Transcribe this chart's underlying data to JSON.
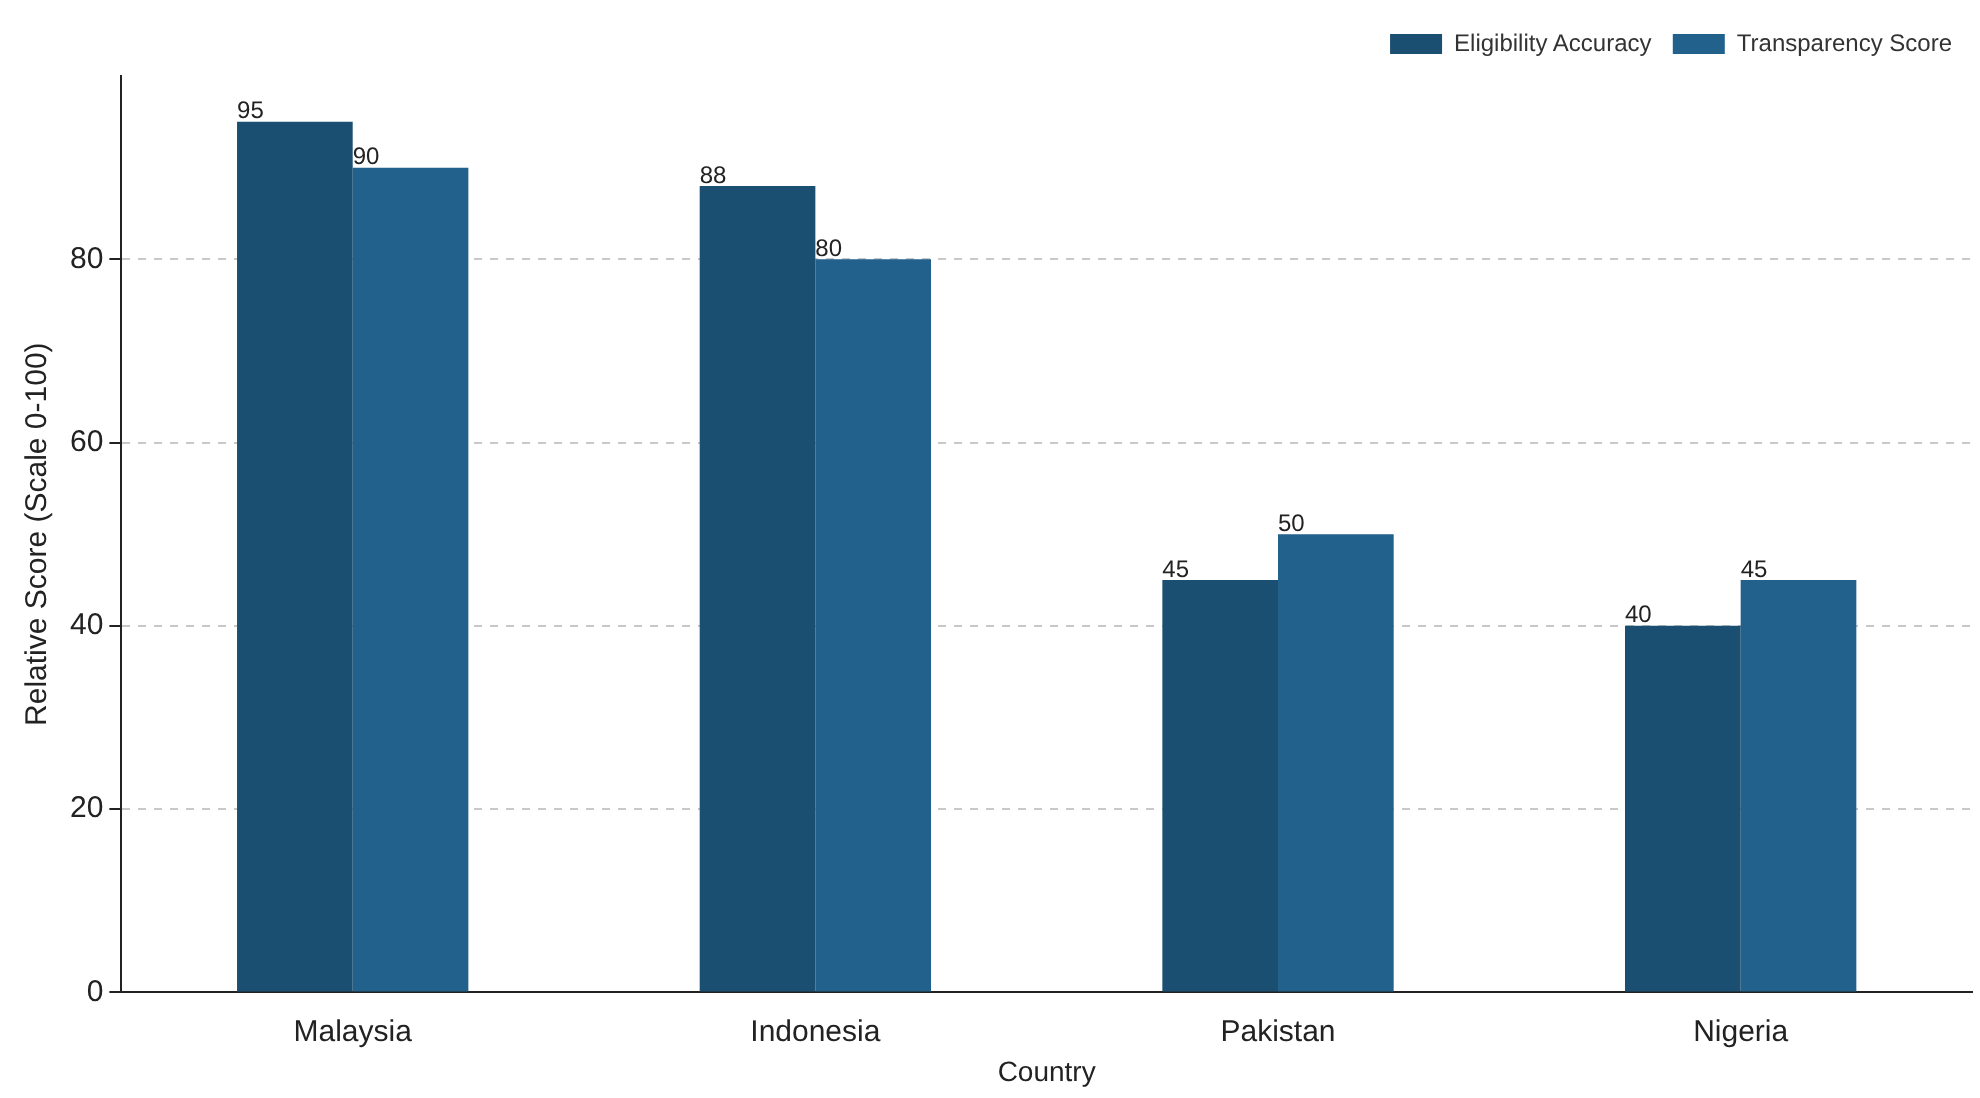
{
  "chart_data": {
    "type": "bar",
    "xlabel": "Country",
    "ylabel": "Relative Score (Scale 0-100)",
    "categories": [
      "Malaysia",
      "Indonesia",
      "Pakistan",
      "Nigeria"
    ],
    "series": [
      {
        "name": "Eligibility Accuracy",
        "color": "#1b4f72",
        "values": [
          95,
          88,
          45,
          40
        ]
      },
      {
        "name": "Transparency Score",
        "color": "#21618c",
        "values": [
          90,
          80,
          50,
          45
        ]
      }
    ],
    "ylim": [
      0,
      100
    ],
    "yticks": [
      0,
      20,
      40,
      60,
      80
    ],
    "grid": "y",
    "legend": "top right",
    "data_labels": true
  }
}
